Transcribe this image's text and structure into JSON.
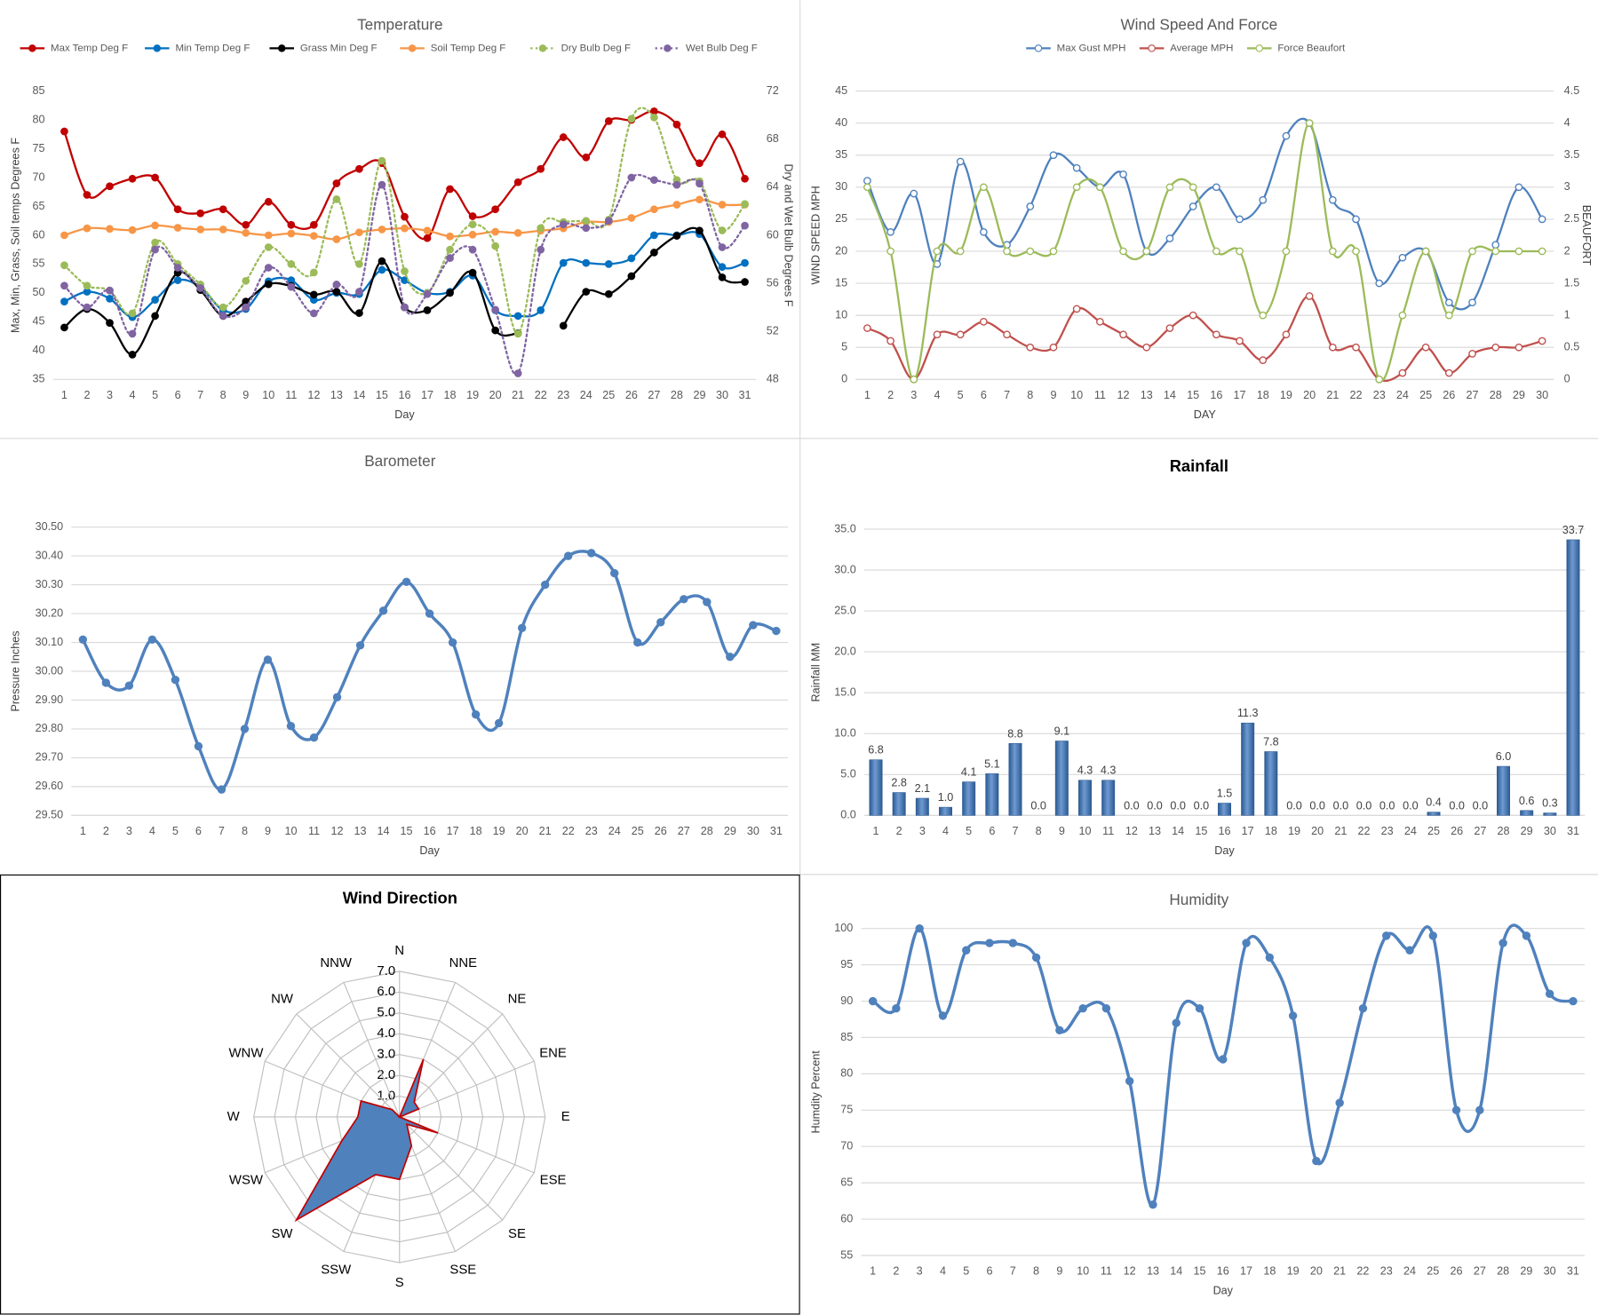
{
  "chart_data": [
    {
      "type": "line",
      "title": "Temperature",
      "xlabel": "Day",
      "ylabel": "Max, Min, Grass, Soil temps Degrees F",
      "y2label": "Dry and Wet Bulb Degrees F",
      "categories": [
        1,
        2,
        3,
        4,
        5,
        6,
        7,
        8,
        9,
        10,
        11,
        12,
        13,
        14,
        15,
        16,
        17,
        18,
        19,
        20,
        21,
        22,
        23,
        24,
        25,
        26,
        27,
        28,
        29,
        30,
        31
      ],
      "ylim": [
        35,
        85
      ],
      "yticks": [
        35,
        40,
        45,
        50,
        55,
        60,
        65,
        70,
        75,
        80,
        85
      ],
      "y2lim": [
        48,
        72
      ],
      "y2ticks": [
        48,
        52,
        56,
        60,
        64,
        68,
        72
      ],
      "grid": false,
      "legend": "top",
      "series": [
        {
          "name": "Max Temp Deg F",
          "color": "#c00000",
          "values": [
            78,
            67,
            68.5,
            69.8,
            70,
            64.5,
            63.8,
            64.5,
            61.8,
            65.8,
            61.8,
            61.8,
            69,
            71.5,
            72.5,
            63.2,
            59.5,
            68,
            63.3,
            64.5,
            69.2,
            71.5,
            77,
            73.5,
            79.8,
            80,
            81.5,
            79.2,
            72.5,
            77.5,
            69.8
          ]
        },
        {
          "name": "Min Temp Deg F",
          "color": "#0070c0",
          "values": [
            48.5,
            50.2,
            49,
            45.8,
            48.8,
            52.2,
            51,
            47,
            47.2,
            52,
            52.2,
            48.8,
            50,
            49.8,
            54,
            52.2,
            50,
            50.2,
            53,
            47,
            46,
            47,
            55.2,
            55.2,
            55,
            56,
            60,
            60,
            60.2,
            54.5,
            55.2
          ]
        },
        {
          "name": "Grass Min Deg F",
          "color": "#000000",
          "values": [
            44,
            47.2,
            44.8,
            39.3,
            46,
            53.5,
            50.5,
            46,
            48.5,
            51.5,
            51.2,
            49.7,
            50.2,
            46.5,
            55.5,
            47.5,
            47,
            50,
            53.5,
            43.5,
            43,
            null,
            44.3,
            50.2,
            49.8,
            52.9,
            57,
            59.9,
            60.8,
            52.7,
            51.9
          ]
        },
        {
          "name": "Soil Temp Deg F",
          "color": "#f79646",
          "values": [
            60,
            61.2,
            61.1,
            60.9,
            61.7,
            61.3,
            61,
            61,
            60.4,
            60,
            60.3,
            59.9,
            59.3,
            60.5,
            61,
            61.2,
            60.8,
            59.8,
            60.1,
            60.6,
            60.4,
            60.8,
            61.2,
            62.3,
            62.3,
            63,
            64.5,
            65.3,
            66.2,
            65.3,
            65.3
          ]
        },
        {
          "name": "Dry Bulb Deg F",
          "color": "#9bbb59",
          "axis": "y2",
          "dash": true,
          "values": [
            57.5,
            55.8,
            55.4,
            53.5,
            59.4,
            57.6,
            55.9,
            54,
            56.2,
            59,
            57.6,
            56.9,
            63,
            57.6,
            66.2,
            57,
            55.2,
            58.8,
            60.9,
            59.1,
            51.8,
            60.6,
            61.1,
            61.2,
            61.3,
            69.7,
            69.8,
            64.6,
            64.5,
            60.4,
            62.6
          ]
        },
        {
          "name": "Wet Bulb Deg F",
          "color": "#8064a2",
          "axis": "y2",
          "dash": true,
          "values": [
            55.8,
            54,
            55.4,
            51.8,
            58.8,
            57.3,
            55.6,
            53.3,
            54,
            57.3,
            55.7,
            53.5,
            55.9,
            55.3,
            64.2,
            54,
            55.1,
            58.1,
            58.8,
            53.8,
            48.5,
            58.8,
            60.9,
            60.6,
            61.2,
            64.8,
            64.6,
            64.2,
            64.3,
            59,
            60.8
          ]
        }
      ]
    },
    {
      "type": "line",
      "title": "Wind Speed And Force",
      "xlabel": "DAY",
      "ylabel": "WIND SPEED MPH",
      "y2label": "BEAUFORT",
      "categories": [
        1,
        2,
        3,
        4,
        5,
        6,
        7,
        8,
        9,
        10,
        11,
        12,
        13,
        14,
        15,
        16,
        17,
        18,
        19,
        20,
        21,
        22,
        23,
        24,
        25,
        26,
        27,
        28,
        29,
        30
      ],
      "ylim": [
        0,
        45
      ],
      "yticks": [
        0,
        5,
        10,
        15,
        20,
        25,
        30,
        35,
        40,
        45
      ],
      "y2lim": [
        0,
        4.5
      ],
      "y2ticks": [
        0,
        0.5,
        1,
        1.5,
        2,
        2.5,
        3,
        3.5,
        4,
        4.5
      ],
      "grid": true,
      "legend": "top",
      "markers": "hollow",
      "series": [
        {
          "name": "Max Gust MPH",
          "color": "#4f81bd",
          "values": [
            31,
            23,
            29,
            18,
            34,
            23,
            21,
            27,
            35,
            33,
            30,
            32,
            20,
            22,
            27,
            30,
            25,
            28,
            38,
            40,
            28,
            25,
            15,
            19,
            20,
            12,
            12,
            21,
            30,
            25
          ]
        },
        {
          "name": "Average MPH",
          "color": "#c0504d",
          "values": [
            8,
            6,
            0,
            7,
            7,
            9,
            7,
            5,
            5,
            11,
            9,
            7,
            5,
            8,
            10,
            7,
            6,
            3,
            7,
            13,
            5,
            5,
            0,
            1,
            5,
            1,
            4,
            5,
            5,
            6
          ]
        },
        {
          "name": "Force Beaufort",
          "color": "#9bbb59",
          "axis": "y2",
          "values": [
            3,
            2,
            0,
            2,
            2,
            3,
            2,
            2,
            2,
            3,
            3,
            2,
            2,
            3,
            3,
            2,
            2,
            1,
            2,
            4,
            2,
            2,
            0,
            1,
            2,
            1,
            2,
            2,
            2,
            2
          ]
        }
      ]
    },
    {
      "type": "line",
      "title": "Barometer",
      "xlabel": "Day",
      "ylabel": "Pressure Inches",
      "color": "#4f81bd",
      "grid": true,
      "categories": [
        1,
        2,
        3,
        4,
        5,
        6,
        7,
        8,
        9,
        10,
        11,
        12,
        13,
        14,
        15,
        16,
        17,
        18,
        19,
        20,
        21,
        22,
        23,
        24,
        25,
        26,
        27,
        28,
        29,
        30,
        31
      ],
      "values": [
        30.11,
        29.96,
        29.95,
        30.11,
        29.97,
        29.74,
        29.59,
        29.8,
        30.04,
        29.81,
        29.77,
        29.91,
        30.09,
        30.21,
        30.31,
        30.2,
        30.1,
        29.85,
        29.82,
        30.15,
        30.3,
        30.4,
        30.41,
        30.34,
        30.1,
        30.17,
        30.25,
        30.24,
        30.05,
        30.16,
        30.14
      ],
      "ylim": [
        29.5,
        30.5
      ],
      "yticks": [
        {
          "value": 29.5,
          "label": "29.50"
        },
        {
          "value": 29.6,
          "label": "29.60"
        },
        {
          "value": 29.7,
          "label": "29.70"
        },
        {
          "value": 29.8,
          "label": "29.80"
        },
        {
          "value": 29.9,
          "label": "29.90"
        },
        {
          "value": 30,
          "label": "30.00"
        },
        {
          "value": 30.1,
          "label": "30.10"
        },
        {
          "value": 30.2,
          "label": "30.20"
        },
        {
          "value": 30.3,
          "label": "30.30"
        },
        {
          "value": 30.4,
          "label": "30.40"
        },
        {
          "value": 30.5,
          "label": "30.50"
        }
      ]
    },
    {
      "type": "bar",
      "title": "Rainfall",
      "xlabel": "Day",
      "ylabel": "Rainfall MM",
      "color": "#4f81bd",
      "grid": true,
      "categories": [
        1,
        2,
        3,
        4,
        5,
        6,
        7,
        8,
        9,
        10,
        11,
        12,
        13,
        14,
        15,
        16,
        17,
        18,
        19,
        20,
        21,
        22,
        23,
        24,
        25,
        26,
        27,
        28,
        29,
        30,
        31
      ],
      "values": [
        6.8,
        2.8,
        2.1,
        1.0,
        4.1,
        5.1,
        8.8,
        0,
        9.1,
        4.3,
        4.3,
        0,
        0,
        0,
        0,
        1.5,
        11.3,
        7.8,
        0,
        0,
        0,
        0,
        0,
        0,
        0.4,
        0,
        0,
        6.0,
        0.6,
        0.3,
        33.7
      ],
      "value_labels": [
        "6.8",
        "2.8",
        "2.1",
        "1.0",
        "4.1",
        "5.1",
        "8.8",
        "0.0",
        "9.1",
        "4.3",
        "4.3",
        "0.0",
        "0.0",
        "0.0",
        "0.0",
        "1.5",
        "11.3",
        "7.8",
        "0.0",
        "0.0",
        "0.0",
        "0.0",
        "0.0",
        "0.0",
        "0.4",
        "0.0",
        "0.0",
        "6.0",
        "0.6",
        "0.3",
        "33.7"
      ],
      "ylim": [
        0,
        35
      ],
      "yticks": [
        {
          "value": 0,
          "label": "0.0"
        },
        {
          "value": 5,
          "label": "5.0"
        },
        {
          "value": 10,
          "label": "10.0"
        },
        {
          "value": 15,
          "label": "15.0"
        },
        {
          "value": 20,
          "label": "20.0"
        },
        {
          "value": 25,
          "label": "25.0"
        },
        {
          "value": 30,
          "label": "30.0"
        },
        {
          "value": 35,
          "label": "35.0"
        }
      ]
    },
    {
      "type": "radar",
      "title": "Wind Direction",
      "color": "#4f81bd",
      "edge_color": "#c00000",
      "categories": [
        "N",
        "NNE",
        "NE",
        "ENE",
        "E",
        "ESE",
        "SE",
        "SSE",
        "S",
        "SSW",
        "SW",
        "WSW",
        "W",
        "WNW",
        "NW",
        "NNW"
      ],
      "values": [
        0,
        3,
        1,
        1,
        0,
        2,
        0.5,
        1.5,
        3,
        3,
        7,
        3,
        2,
        2,
        0.5,
        0
      ],
      "rlim": [
        0,
        7
      ],
      "rticks": [
        {
          "value": 0,
          "label": "0.0"
        },
        {
          "value": 1,
          "label": "1.0"
        },
        {
          "value": 2,
          "label": "2.0"
        },
        {
          "value": 3,
          "label": "3.0"
        },
        {
          "value": 4,
          "label": "4.0"
        },
        {
          "value": 5,
          "label": "5.0"
        },
        {
          "value": 6,
          "label": "6.0"
        },
        {
          "value": 7,
          "label": "7.0"
        }
      ]
    },
    {
      "type": "line",
      "title": "Humidity",
      "xlabel": "Day",
      "ylabel": "Humdity Percent",
      "color": "#4f81bd",
      "grid": true,
      "categories": [
        1,
        2,
        3,
        4,
        5,
        6,
        7,
        8,
        9,
        10,
        11,
        12,
        13,
        14,
        15,
        16,
        17,
        18,
        19,
        20,
        21,
        22,
        23,
        24,
        25,
        26,
        27,
        28,
        29,
        30,
        31
      ],
      "values": [
        90,
        89,
        100,
        88,
        97,
        98,
        98,
        96,
        86,
        89,
        89,
        79,
        62,
        87,
        89,
        82,
        98,
        96,
        88,
        68,
        76,
        89,
        99,
        97,
        99,
        75,
        75,
        98,
        99,
        91,
        90
      ],
      "ylim": [
        55,
        100
      ],
      "yticks": [
        55,
        60,
        65,
        70,
        75,
        80,
        85,
        90,
        95,
        100
      ]
    }
  ]
}
